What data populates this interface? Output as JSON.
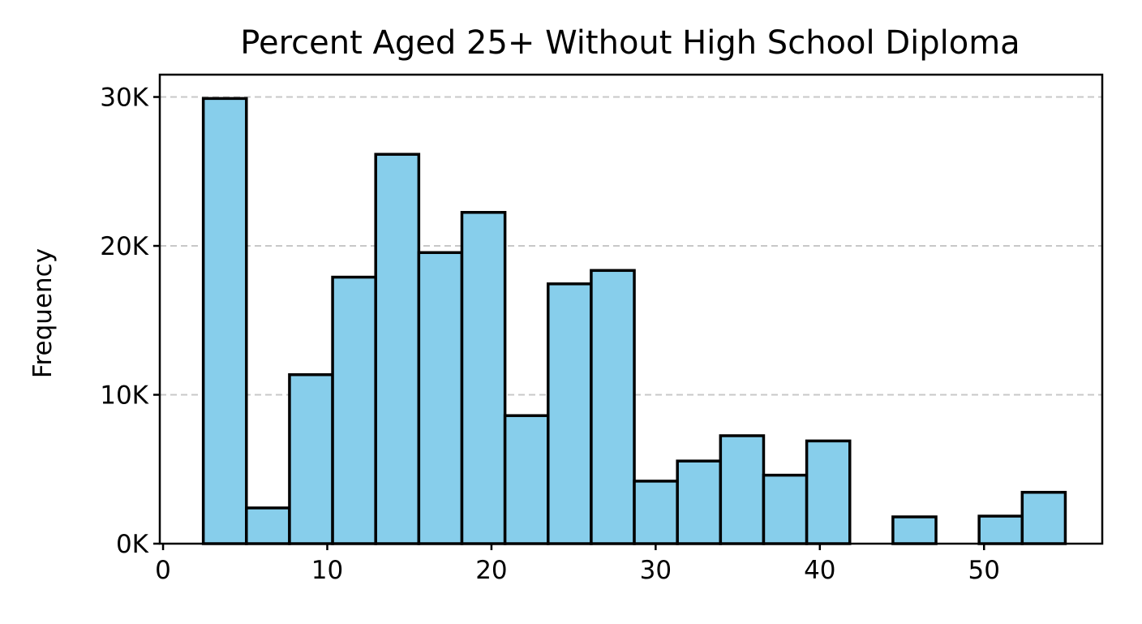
{
  "chart_data": {
    "type": "bar",
    "title": "Percent Aged 25+ Without High School Diploma",
    "xlabel": "",
    "ylabel": "Frequency",
    "xlim": [
      -0.2,
      57.2
    ],
    "ylim": [
      0,
      31500
    ],
    "x_ticks": [
      0,
      10,
      20,
      30,
      40,
      50
    ],
    "x_tick_labels": [
      "0",
      "10",
      "20",
      "30",
      "40",
      "50"
    ],
    "y_ticks": [
      0,
      10000,
      20000,
      30000
    ],
    "y_tick_labels": [
      "0K",
      "10K",
      "20K",
      "30K"
    ],
    "grid": "y-dashed",
    "bar_color": "#87ceeb",
    "bin_start": 2.45,
    "bin_width": 2.625,
    "values": [
      29900,
      2400,
      11350,
      17900,
      26150,
      19550,
      22250,
      8600,
      17450,
      18350,
      4200,
      5550,
      7250,
      4600,
      6900,
      0,
      1800,
      0,
      1850,
      3450
    ]
  }
}
